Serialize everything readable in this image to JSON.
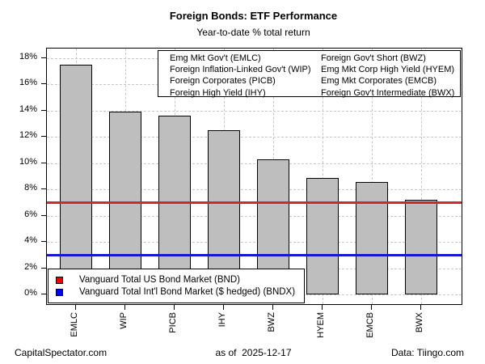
{
  "header": {
    "title": "Foreign Bonds: ETF Performance",
    "subtitle": "Year-to-date % total return"
  },
  "chart_data": {
    "type": "bar",
    "title": "Foreign Bonds: ETF Performance",
    "subtitle": "Year-to-date % total return",
    "categories": [
      "EMLC",
      "WIP",
      "PICB",
      "IHY",
      "BWZ",
      "HYEM",
      "EMCB",
      "BWX"
    ],
    "values": [
      17.5,
      13.9,
      13.6,
      12.5,
      10.3,
      8.9,
      8.6,
      7.2
    ],
    "ylim": [
      0,
      18
    ],
    "ytick_step": 2,
    "ytick_suffix": "%",
    "grid": true,
    "legend_position": "top-right",
    "bar_fill": "#bebebe",
    "bar_border": "#000000",
    "grid_color": "#c8c8c8",
    "ref_lines": [
      {
        "label": "Vanguard Total US Bond Market (BND)",
        "value": 7.0,
        "color": "#cc2b2b",
        "key_color": "#ee0000"
      },
      {
        "label": "Vanguard Total Int'l Bond Market ($ hedged) (BNDX)",
        "value": 3.0,
        "color": "#1717cc",
        "key_color": "#0000ee"
      }
    ]
  },
  "etf_legend": {
    "col1": [
      "Emg Mkt Gov't (EMLC)",
      "Foreign Inflation-Linked Gov't (WIP)",
      "Foreign Corporates (PICB)",
      "Foreign High Yield (IHY)"
    ],
    "col2": [
      "Foreign Gov't Short (BWZ)",
      "Emg Mkt Corp High Yield (HYEM)",
      "Emg Mkt Corporates (EMCB)",
      "Foreign Gov't Intermediate (BWX)"
    ]
  },
  "footer": {
    "left": "CapitalSpectator.com",
    "center": "as of  2025-12-17",
    "right": "Data: Tiingo.com"
  }
}
